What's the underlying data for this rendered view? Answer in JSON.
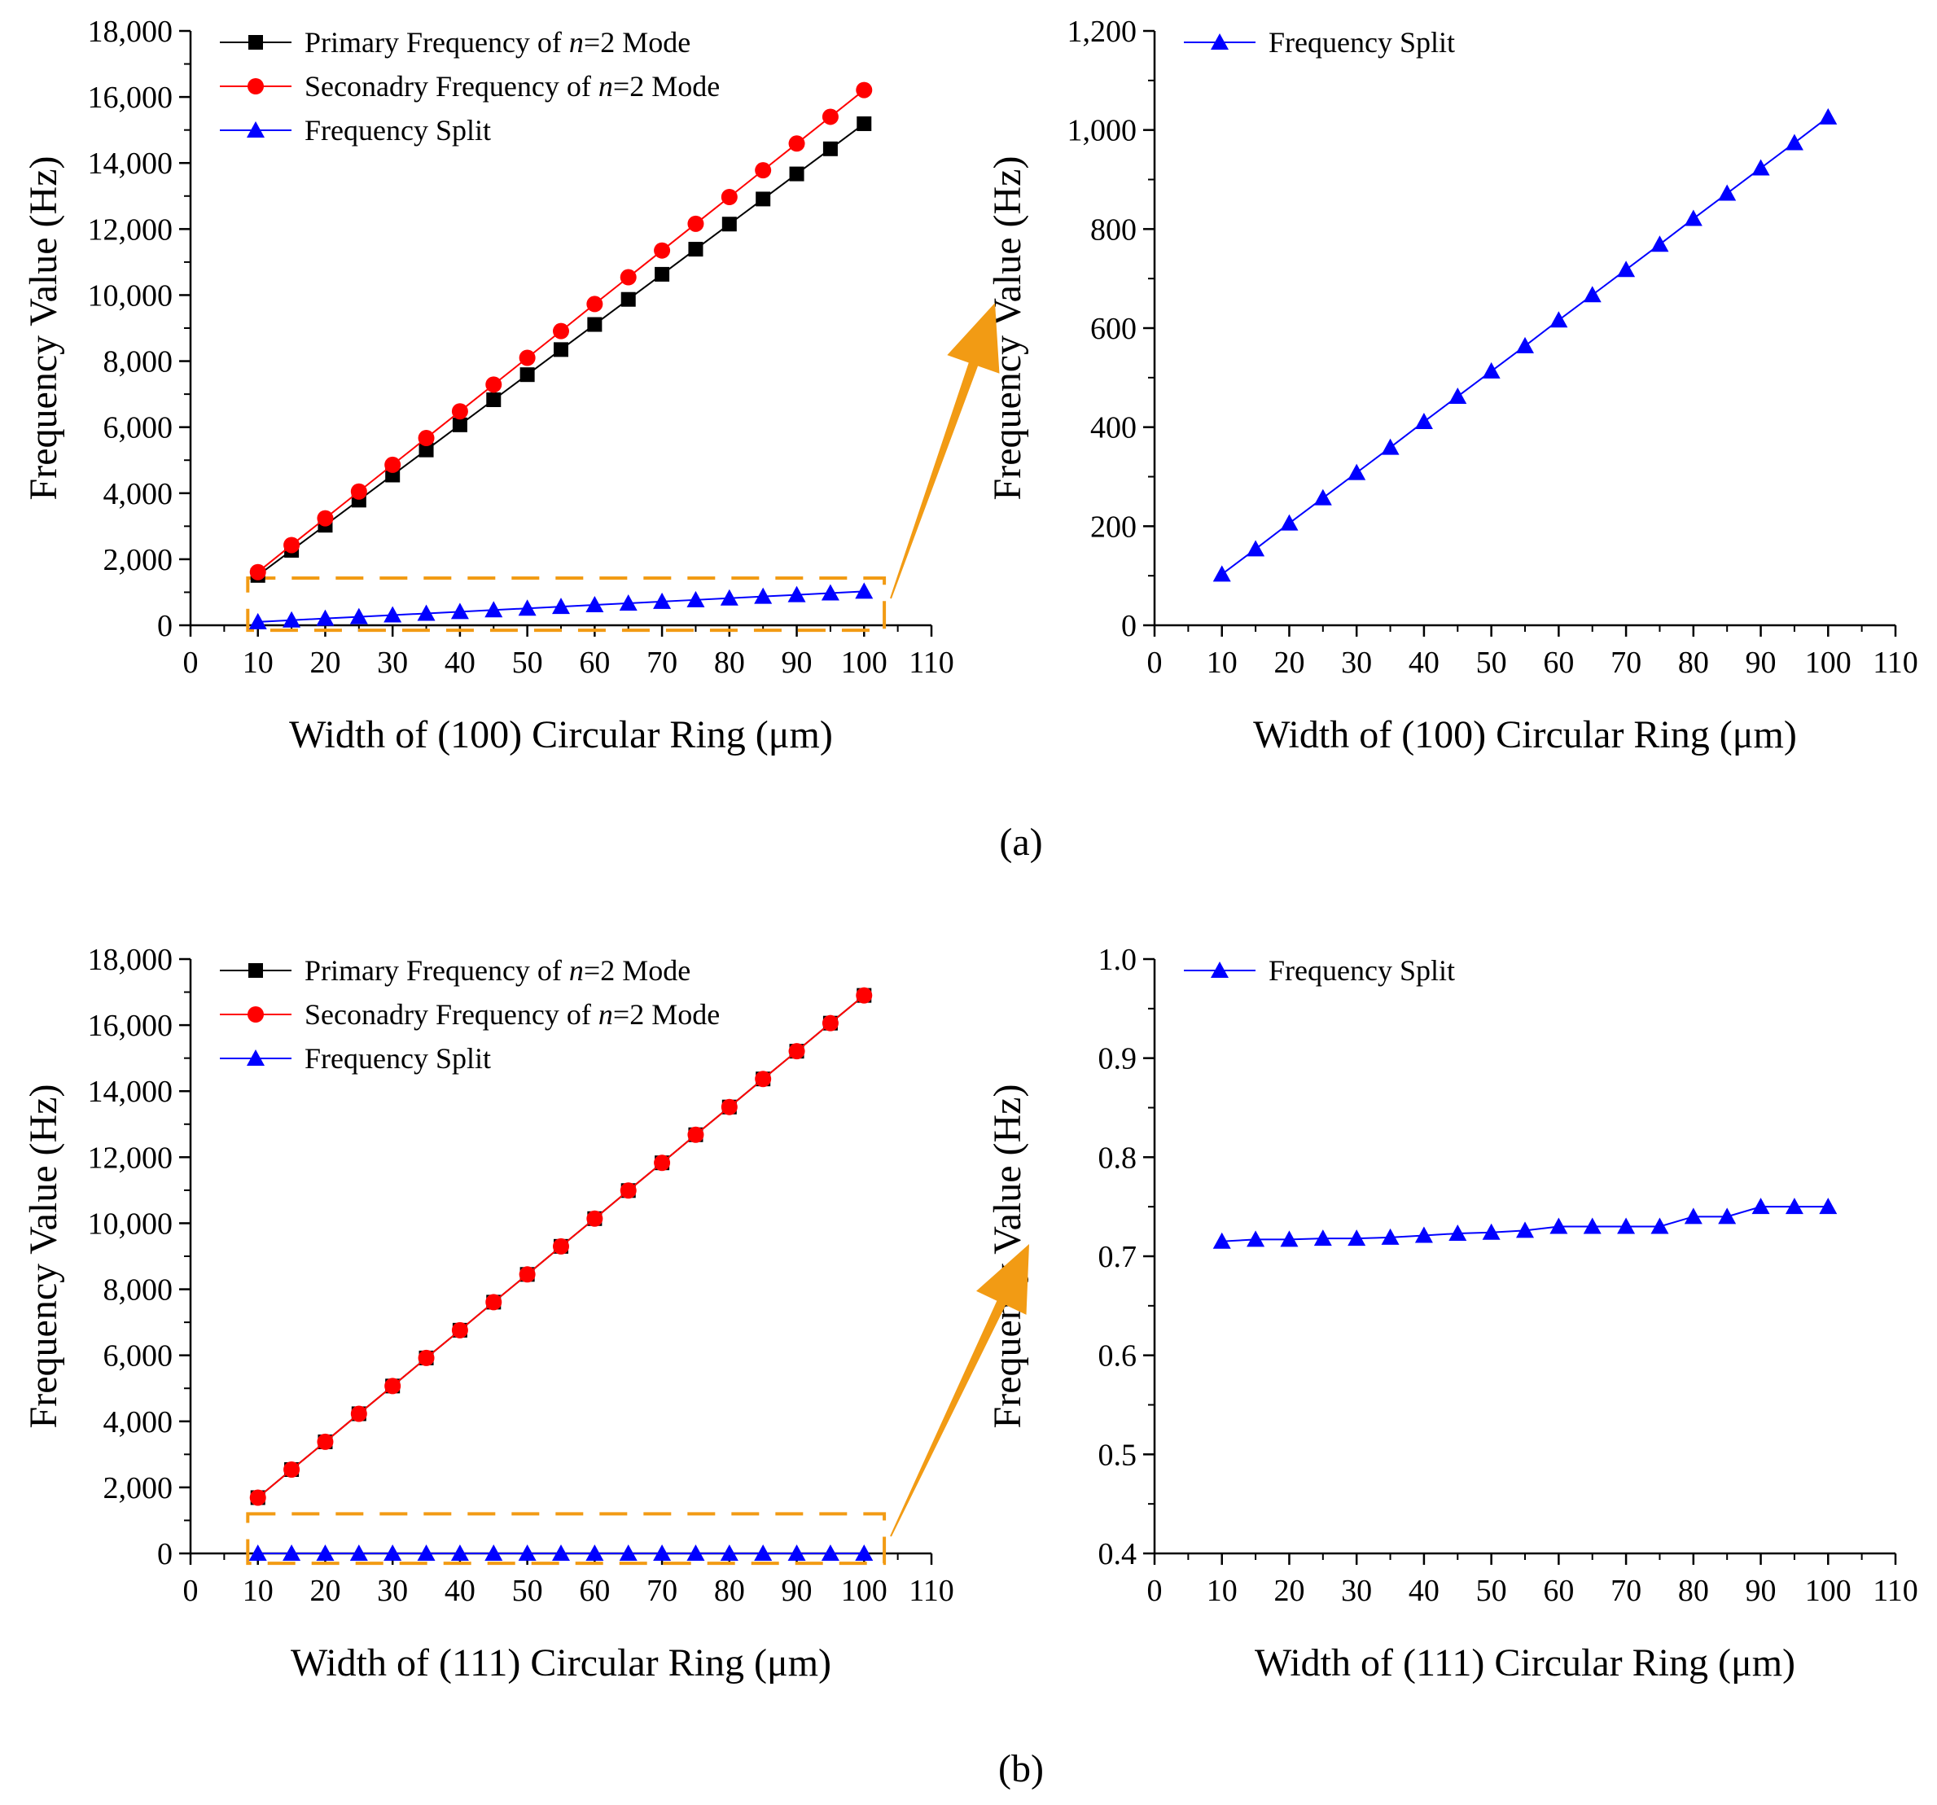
{
  "panels": {
    "a": {
      "label": "(a)"
    },
    "b": {
      "label": "(b)"
    }
  },
  "colors": {
    "primary": "#000000",
    "secondary": "#ff0000",
    "split": "#0000ff",
    "highlight": "#f29b14"
  },
  "chart_data": [
    {
      "id": "a-left",
      "type": "line",
      "xlabel": "Width of (100) Circular Ring (μm)",
      "ylabel": "Frequency Value (Hz)",
      "xlim": [
        0,
        110
      ],
      "ylim": [
        0,
        18000
      ],
      "xticks": [
        "0",
        "10",
        "20",
        "30",
        "40",
        "50",
        "60",
        "70",
        "80",
        "90",
        "100",
        "110"
      ],
      "yticks": [
        "0",
        "2,000",
        "4,000",
        "6,000",
        "8,000",
        "10,000",
        "12,000",
        "14,000",
        "16,000",
        "18,000"
      ],
      "x": [
        10,
        15,
        20,
        25,
        30,
        35,
        40,
        45,
        50,
        55,
        60,
        65,
        70,
        75,
        80,
        85,
        90,
        95,
        100
      ],
      "legend": "top-left",
      "series": [
        {
          "name": "Primary Frequency of n=2 Mode",
          "name_pre": "Primary Frequency of ",
          "name_em": "n",
          "name_post": "=2 Mode",
          "color": "#000000",
          "marker": "square",
          "values": [
            1510,
            2270,
            3030,
            3790,
            4550,
            5310,
            6070,
            6830,
            7590,
            8350,
            9110,
            9870,
            10630,
            11390,
            12150,
            12910,
            13670,
            14430,
            15190
          ]
        },
        {
          "name": "Seconadry Frequency of n=2 Mode",
          "name_pre": "Seconadry Frequency of ",
          "name_em": "n",
          "name_post": "=2 Mode",
          "color": "#ff0000",
          "marker": "circle",
          "values": [
            1610,
            2430,
            3240,
            4050,
            4860,
            5670,
            6480,
            7290,
            8100,
            8910,
            9730,
            10540,
            11350,
            12160,
            12970,
            13780,
            14590,
            15400,
            16210
          ]
        },
        {
          "name": "Frequency Split",
          "name_pre": "Frequency Split",
          "name_em": "",
          "name_post": "",
          "color": "#0000ff",
          "marker": "triangle",
          "values": [
            103,
            154,
            206,
            257,
            308,
            359,
            411,
            462,
            513,
            564,
            616,
            667,
            718,
            769,
            821,
            872,
            923,
            974,
            1026
          ]
        }
      ],
      "highlight_box": {
        "x0": 8.5,
        "x1": 103,
        "y0": -150,
        "y1": 1430
      }
    },
    {
      "id": "a-right",
      "type": "line",
      "xlabel": "Width of (100) Circular Ring (μm)",
      "ylabel": "Frequency Value (Hz)",
      "xlim": [
        0,
        110
      ],
      "ylim": [
        0,
        1200
      ],
      "xticks": [
        "0",
        "10",
        "20",
        "30",
        "40",
        "50",
        "60",
        "70",
        "80",
        "90",
        "100",
        "110"
      ],
      "yticks": [
        "0",
        "200",
        "400",
        "600",
        "800",
        "1,000",
        "1,200"
      ],
      "x": [
        10,
        15,
        20,
        25,
        30,
        35,
        40,
        45,
        50,
        55,
        60,
        65,
        70,
        75,
        80,
        85,
        90,
        95,
        100
      ],
      "legend": "top-left",
      "series": [
        {
          "name": "Frequency Split",
          "name_pre": "Frequency Split",
          "name_em": "",
          "name_post": "",
          "color": "#0000ff",
          "marker": "triangle",
          "values": [
            103,
            154,
            206,
            257,
            308,
            359,
            411,
            462,
            513,
            564,
            616,
            667,
            718,
            769,
            821,
            872,
            923,
            974,
            1026
          ]
        }
      ]
    },
    {
      "id": "b-left",
      "type": "line",
      "xlabel": "Width of (111) Circular Ring (μm)",
      "ylabel": "Frequency Value (Hz)",
      "xlim": [
        0,
        110
      ],
      "ylim": [
        0,
        18000
      ],
      "xticks": [
        "0",
        "10",
        "20",
        "30",
        "40",
        "50",
        "60",
        "70",
        "80",
        "90",
        "100",
        "110"
      ],
      "yticks": [
        "0",
        "2,000",
        "4,000",
        "6,000",
        "8,000",
        "10,000",
        "12,000",
        "14,000",
        "16,000",
        "18,000"
      ],
      "x": [
        10,
        15,
        20,
        25,
        30,
        35,
        40,
        45,
        50,
        55,
        60,
        65,
        70,
        75,
        80,
        85,
        90,
        95,
        100
      ],
      "legend": "top-left",
      "series": [
        {
          "name": "Primary Frequency of n=2 Mode",
          "name_pre": "Primary Frequency of ",
          "name_em": "n",
          "name_post": "=2 Mode",
          "color": "#000000",
          "marker": "square",
          "values": [
            1690,
            2540,
            3380,
            4230,
            5070,
            5920,
            6760,
            7610,
            8450,
            9300,
            10140,
            10990,
            11830,
            12680,
            13520,
            14370,
            15210,
            16060,
            16900
          ]
        },
        {
          "name": "Seconadry Frequency of n=2 Mode",
          "name_pre": "Seconadry Frequency of ",
          "name_em": "n",
          "name_post": "=2 Mode",
          "color": "#ff0000",
          "marker": "circle",
          "values": [
            1690,
            2540,
            3380,
            4230,
            5070,
            5920,
            6760,
            7610,
            8450,
            9300,
            10140,
            10990,
            11830,
            12680,
            13520,
            14370,
            15210,
            16060,
            16900
          ]
        },
        {
          "name": "Frequency Split",
          "name_pre": "Frequency Split",
          "name_em": "",
          "name_post": "",
          "color": "#0000ff",
          "marker": "triangle",
          "values": [
            0.715,
            0.717,
            0.717,
            0.718,
            0.718,
            0.719,
            0.721,
            0.723,
            0.724,
            0.726,
            0.73,
            0.73,
            0.73,
            0.73,
            0.74,
            0.74,
            0.75,
            0.75,
            0.75
          ]
        }
      ],
      "highlight_box": {
        "x0": 8.5,
        "x1": 103,
        "y0": -300,
        "y1": 1200
      }
    },
    {
      "id": "b-right",
      "type": "line",
      "xlabel": "Width of (111) Circular Ring (μm)",
      "ylabel": "Frequency Value (Hz)",
      "xlim": [
        0,
        110
      ],
      "ylim": [
        0.4,
        1.0
      ],
      "xticks": [
        "0",
        "10",
        "20",
        "30",
        "40",
        "50",
        "60",
        "70",
        "80",
        "90",
        "100",
        "110"
      ],
      "yticks": [
        "0.4",
        "0.5",
        "0.6",
        "0.7",
        "0.8",
        "0.9",
        "1.0"
      ],
      "x": [
        10,
        15,
        20,
        25,
        30,
        35,
        40,
        45,
        50,
        55,
        60,
        65,
        70,
        75,
        80,
        85,
        90,
        95,
        100
      ],
      "legend": "top-left",
      "series": [
        {
          "name": "Frequency Split",
          "name_pre": "Frequency Split",
          "name_em": "",
          "name_post": "",
          "color": "#0000ff",
          "marker": "triangle",
          "values": [
            0.715,
            0.717,
            0.717,
            0.718,
            0.718,
            0.719,
            0.721,
            0.723,
            0.724,
            0.726,
            0.73,
            0.73,
            0.73,
            0.73,
            0.74,
            0.74,
            0.75,
            0.75,
            0.75
          ]
        }
      ]
    }
  ]
}
